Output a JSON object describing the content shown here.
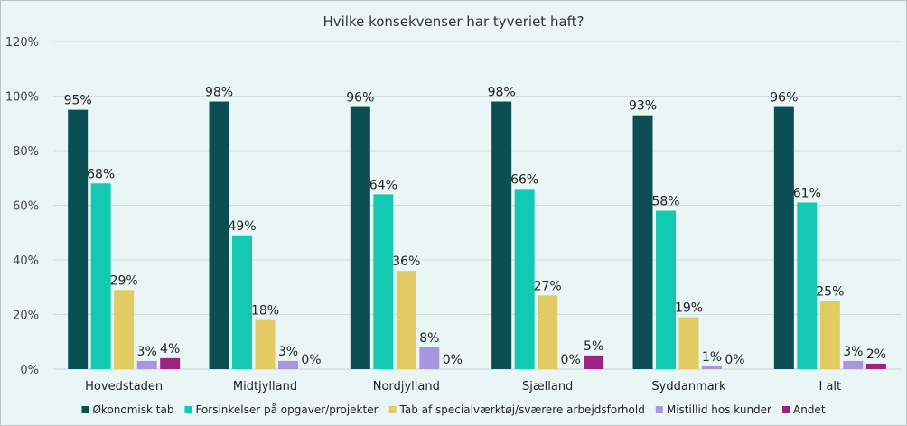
{
  "chart_data": {
    "type": "bar",
    "title": "Hvilke konsekvenser har tyveriet haft?",
    "xlabel": "",
    "ylabel": "",
    "ylim": [
      0,
      120
    ],
    "yticks": [
      0,
      20,
      40,
      60,
      80,
      100,
      120
    ],
    "ytick_labels": [
      "0%",
      "20%",
      "40%",
      "60%",
      "80%",
      "100%",
      "120%"
    ],
    "grid": true,
    "legend_position": "bottom",
    "categories": [
      "Hovedstaden",
      "Midtjylland",
      "Nordjylland",
      "Sjælland",
      "Syddanmark",
      "I alt"
    ],
    "series": [
      {
        "name": "Økonomisk tab",
        "color": "#0b4f55",
        "values": [
          95,
          98,
          96,
          98,
          93,
          96
        ],
        "labels": [
          "95%",
          "98%",
          "96%",
          "98%",
          "93%",
          "96%"
        ]
      },
      {
        "name": "Forsinkelser på opgaver/projekter",
        "color": "#14c9b1",
        "values": [
          68,
          49,
          64,
          66,
          58,
          61
        ],
        "labels": [
          "68%",
          "49%",
          "64%",
          "66%",
          "58%",
          "61%"
        ]
      },
      {
        "name": "Tab af specialværktøj/sværere arbejdsforhold",
        "color": "#e1cc64",
        "values": [
          29,
          18,
          36,
          27,
          19,
          25
        ],
        "labels": [
          "29%",
          "18%",
          "36%",
          "27%",
          "19%",
          "25%"
        ]
      },
      {
        "name": "Mistillid hos kunder",
        "color": "#a996e0",
        "values": [
          3,
          3,
          8,
          0,
          1,
          3
        ],
        "labels": [
          "3%",
          "3%",
          "8%",
          "0%",
          "1%",
          "3%"
        ]
      },
      {
        "name": "Andet",
        "color": "#9b2382",
        "values": [
          4,
          0,
          0,
          5,
          0,
          2
        ],
        "labels": [
          "4%",
          "0%",
          "0%",
          "5%",
          "0%",
          "2%"
        ]
      }
    ]
  }
}
